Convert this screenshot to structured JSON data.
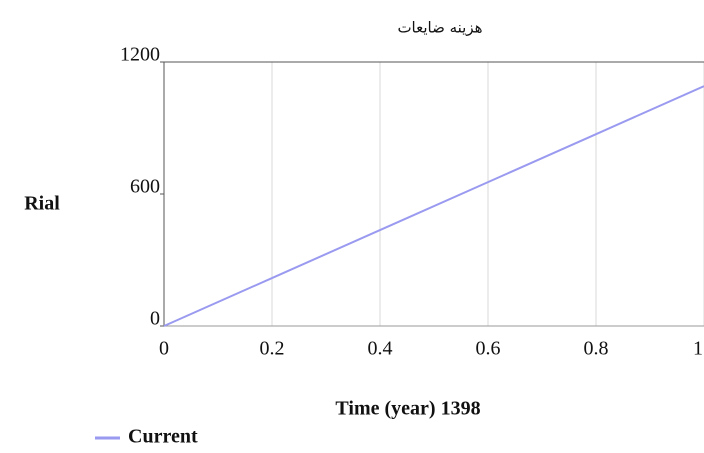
{
  "chart_data": {
    "type": "line",
    "title": "هزینه ضایعات",
    "x_label": "Time (year) 1398",
    "y_label": "Rial",
    "x": [
      0,
      0.2,
      0.4,
      0.6,
      0.8,
      1
    ],
    "series": [
      {
        "name": "Current",
        "color": "#9a9af0",
        "values": [
          0,
          218,
          436,
          654,
          872,
          1090
        ]
      }
    ],
    "xlim": [
      0,
      1
    ],
    "xticks": [
      0,
      0.2,
      0.4,
      0.6,
      0.8,
      1
    ],
    "ylim": [
      0,
      1200
    ],
    "yticks": [
      0,
      600,
      1200
    ],
    "grid": true,
    "legend": "bottom-left"
  }
}
